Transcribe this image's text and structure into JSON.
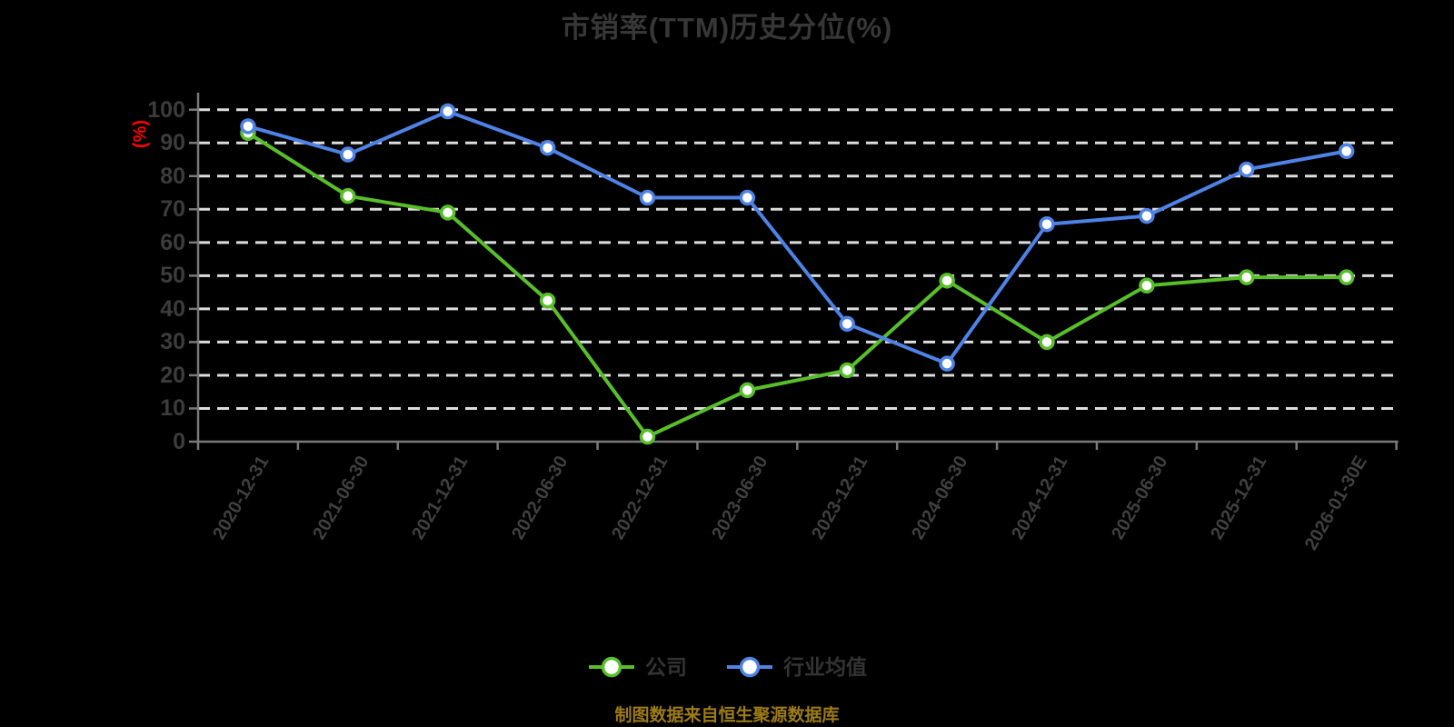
{
  "chart_data": {
    "type": "line",
    "title": "市销率(TTM)历史分位(%)",
    "y_unit": "(%)",
    "ylim": [
      0,
      100
    ],
    "y_tick_step": 10,
    "y_tick_labels": [
      "0",
      "10",
      "20",
      "30",
      "40",
      "50",
      "60",
      "70",
      "80",
      "90",
      "100"
    ],
    "grid": "horizontal-dashed",
    "legend_position": "bottom",
    "categories": [
      "2020-12-31",
      "2021-06-30",
      "2021-12-31",
      "2022-06-30",
      "2022-12-31",
      "2023-06-30",
      "2023-12-31",
      "2024-06-30",
      "2024-12-31",
      "2025-06-30",
      "2025-12-31",
      "2026-01-30E"
    ],
    "series": [
      {
        "id": "company",
        "name": "公司",
        "color": "#58BE2A",
        "marker": "circle-white-fill",
        "values": [
          93,
          74,
          69,
          42.5,
          1.5,
          15.5,
          21.5,
          48.5,
          30,
          47,
          49.5,
          49.5
        ]
      },
      {
        "id": "industry-average",
        "name": "行业均值",
        "color": "#4E82E4",
        "marker": "circle-white-fill",
        "values": [
          95,
          86.5,
          99.5,
          88.5,
          73.5,
          73.5,
          35.5,
          23.5,
          65.5,
          68,
          82,
          87.5
        ]
      }
    ]
  },
  "footer": {
    "text": "制图数据来自恒生聚源数据库"
  },
  "colors": {
    "background": "#000000",
    "title_text": "#373737",
    "axis_text": "#3C3C3C",
    "axis_line": "#7A7A7A",
    "gridline": "#DDDDDD",
    "y_unit_text": "#FF0000",
    "footer_text": "#9C7B16",
    "series_company": "#58BE2A",
    "series_industry": "#4E82E4",
    "marker_fill": "#FFFFFF"
  }
}
